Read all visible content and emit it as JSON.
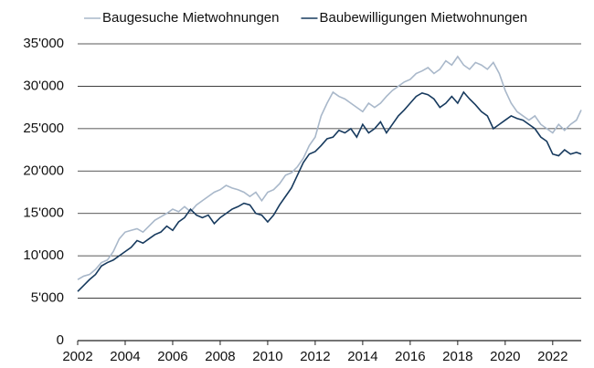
{
  "chart_data": {
    "type": "line",
    "x": [
      2002,
      2002.25,
      2002.5,
      2002.75,
      2003,
      2003.25,
      2003.5,
      2003.75,
      2004,
      2004.25,
      2004.5,
      2004.75,
      2005,
      2005.25,
      2005.5,
      2005.75,
      2006,
      2006.25,
      2006.5,
      2006.75,
      2007,
      2007.25,
      2007.5,
      2007.75,
      2008,
      2008.25,
      2008.5,
      2008.75,
      2009,
      2009.25,
      2009.5,
      2009.75,
      2010,
      2010.25,
      2010.5,
      2010.75,
      2011,
      2011.25,
      2011.5,
      2011.75,
      2012,
      2012.25,
      2012.5,
      2012.75,
      2013,
      2013.25,
      2013.5,
      2013.75,
      2014,
      2014.25,
      2014.5,
      2014.75,
      2015,
      2015.25,
      2015.5,
      2015.75,
      2016,
      2016.25,
      2016.5,
      2016.75,
      2017,
      2017.25,
      2017.5,
      2017.75,
      2018,
      2018.25,
      2018.5,
      2018.75,
      2019,
      2019.25,
      2019.5,
      2019.75,
      2020,
      2020.25,
      2020.5,
      2020.75,
      2021,
      2021.25,
      2021.5,
      2021.75,
      2022,
      2022.25,
      2022.5,
      2022.75,
      2023,
      2023.2
    ],
    "series": [
      {
        "name": "Baugesuche Mietwohnungen",
        "color": "#a9b8ca",
        "values": [
          7200,
          7600,
          7800,
          8400,
          9200,
          9500,
          10500,
          12000,
          12800,
          13000,
          13200,
          12800,
          13500,
          14200,
          14600,
          15000,
          15500,
          15200,
          15800,
          15200,
          16000,
          16500,
          17000,
          17500,
          17800,
          18300,
          18000,
          17800,
          17500,
          17000,
          17500,
          16500,
          17500,
          17800,
          18500,
          19500,
          19800,
          20500,
          21500,
          23000,
          24000,
          26500,
          28000,
          29300,
          28800,
          28500,
          28000,
          27500,
          27000,
          28000,
          27500,
          28000,
          28800,
          29500,
          30000,
          30500,
          30800,
          31500,
          31800,
          32200,
          31500,
          32000,
          33000,
          32500,
          33500,
          32500,
          32000,
          32800,
          32500,
          32000,
          32800,
          31500,
          29500,
          28000,
          27000,
          26500,
          26000,
          26500,
          25500,
          25000,
          24500,
          25500,
          24800,
          25500,
          26000,
          27200
        ]
      },
      {
        "name": "Baubewilligungen Mietwohnungen",
        "color": "#173a5e",
        "values": [
          5800,
          6500,
          7200,
          7800,
          8800,
          9200,
          9500,
          10000,
          10500,
          11000,
          11800,
          11500,
          12000,
          12500,
          12800,
          13500,
          13000,
          14000,
          14500,
          15500,
          14800,
          14500,
          14800,
          13800,
          14500,
          15000,
          15500,
          15800,
          16200,
          16000,
          15000,
          14800,
          14000,
          14800,
          16000,
          17000,
          18000,
          19500,
          21000,
          22000,
          22300,
          23000,
          23800,
          24000,
          24800,
          24500,
          25000,
          24000,
          25500,
          24500,
          25000,
          25800,
          24500,
          25500,
          26500,
          27200,
          28000,
          28800,
          29200,
          29000,
          28500,
          27500,
          28000,
          28800,
          28000,
          29300,
          28500,
          27800,
          27000,
          26500,
          25000,
          25500,
          26000,
          26500,
          26200,
          26000,
          25500,
          25000,
          24000,
          23500,
          22000,
          21800,
          22500,
          22000,
          22200,
          22000
        ]
      }
    ],
    "xlim": [
      2002,
      2023.2
    ],
    "xticks": [
      2002,
      2004,
      2006,
      2008,
      2010,
      2012,
      2014,
      2016,
      2018,
      2020,
      2022
    ],
    "ylim": [
      0,
      35000
    ],
    "yticks": [
      0,
      {
        "value": 5000,
        "label": "5'000"
      },
      {
        "value": 10000,
        "label": "10'000"
      },
      {
        "value": 15000,
        "label": "15'000"
      },
      {
        "value": 20000,
        "label": "20'000"
      },
      {
        "value": 25000,
        "label": "25'000"
      },
      {
        "value": 30000,
        "label": "30'000"
      },
      {
        "value": 35000,
        "label": "35'000"
      }
    ],
    "grid": true
  }
}
